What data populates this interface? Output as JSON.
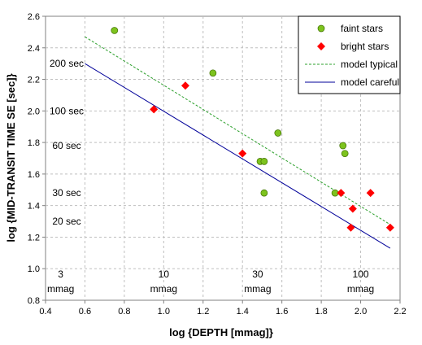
{
  "chart_data": {
    "type": "scatter",
    "xlabel": "log {DEPTH [mmag]}",
    "ylabel": "log {MID-TRANSIT TIME SE [sec]}",
    "xlim": [
      0.4,
      2.2
    ],
    "ylim": [
      0.8,
      2.6
    ],
    "xticks": [
      "0.4",
      "0.6",
      "0.8",
      "1.0",
      "1.2",
      "1.4",
      "1.6",
      "1.8",
      "2.0",
      "2.2"
    ],
    "yticks": [
      "0.8",
      "1.0",
      "1.2",
      "1.4",
      "1.6",
      "1.8",
      "2.0",
      "2.2",
      "2.4",
      "2.6"
    ],
    "grid": "dashed",
    "legend_position": "top-right",
    "series": [
      {
        "name": "faint stars",
        "marker": "circle",
        "color": "#7dc31e",
        "points": [
          {
            "x": 0.75,
            "y": 2.51
          },
          {
            "x": 1.25,
            "y": 2.24
          },
          {
            "x": 1.49,
            "y": 1.68
          },
          {
            "x": 1.51,
            "y": 1.68
          },
          {
            "x": 1.51,
            "y": 1.48
          },
          {
            "x": 1.58,
            "y": 1.86
          },
          {
            "x": 1.87,
            "y": 1.48
          },
          {
            "x": 1.91,
            "y": 1.78
          },
          {
            "x": 1.92,
            "y": 1.73
          }
        ]
      },
      {
        "name": "bright stars",
        "marker": "diamond",
        "color": "#ff0000",
        "points": [
          {
            "x": 0.95,
            "y": 2.01
          },
          {
            "x": 1.11,
            "y": 2.16
          },
          {
            "x": 1.4,
            "y": 1.73
          },
          {
            "x": 1.9,
            "y": 1.48
          },
          {
            "x": 1.96,
            "y": 1.38
          },
          {
            "x": 1.95,
            "y": 1.26
          },
          {
            "x": 2.05,
            "y": 1.48
          },
          {
            "x": 2.15,
            "y": 1.26
          }
        ]
      },
      {
        "name": "model typical",
        "line": "dashed",
        "color": "#2ca02c",
        "points": [
          {
            "x": 0.6,
            "y": 2.47
          },
          {
            "x": 2.15,
            "y": 1.28
          }
        ]
      },
      {
        "name": "model careful",
        "line": "solid",
        "color": "#000099",
        "points": [
          {
            "x": 0.6,
            "y": 2.3
          },
          {
            "x": 2.15,
            "y": 1.13
          }
        ]
      }
    ],
    "annotations_y": [
      {
        "text": "200 sec",
        "y": 2.3
      },
      {
        "text": "100 sec",
        "y": 2.0
      },
      {
        "text": "60 sec",
        "y": 1.78
      },
      {
        "text": "30 sec",
        "y": 1.48
      },
      {
        "text": "20 sec",
        "y": 1.3
      }
    ],
    "annotations_x": [
      {
        "value": "3",
        "unit": "mmag",
        "x": 0.477
      },
      {
        "value": "10",
        "unit": "mmag",
        "x": 1.0
      },
      {
        "value": "30",
        "unit": "mmag",
        "x": 1.477
      },
      {
        "value": "100",
        "unit": "mmag",
        "x": 2.0
      }
    ]
  }
}
